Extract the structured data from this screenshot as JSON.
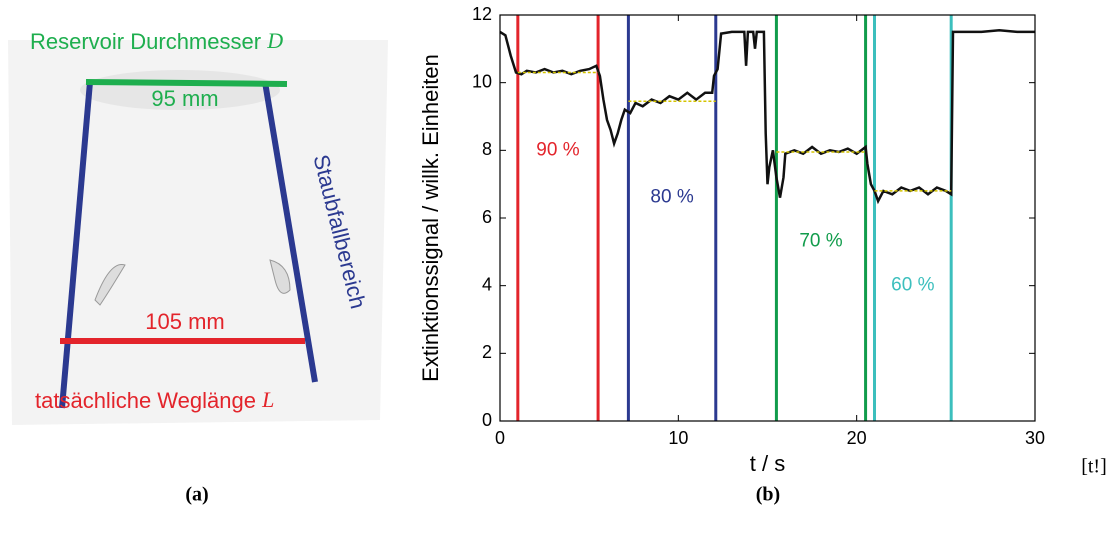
{
  "panel_a": {
    "top_label": "Reservoir Durchmesser",
    "top_symbol": "D",
    "top_width": "95 mm",
    "side_label": "Staubfallbereich",
    "bottom_width": "105 mm",
    "bottom_label": "tatsächliche Weglänge",
    "bottom_symbol": "L"
  },
  "chart_data": {
    "type": "line",
    "xlabel": "t / s",
    "ylabel": "Extinktionssignal / willk. Einheiten",
    "xlim": [
      0,
      30
    ],
    "ylim": [
      0,
      12
    ],
    "xticks": [
      0,
      10,
      20,
      30
    ],
    "yticks": [
      0,
      2,
      4,
      6,
      8,
      10,
      12
    ],
    "series": [
      {
        "color": "#111111",
        "x": [
          0,
          0.3,
          0.6,
          0.9,
          1.2,
          1.5,
          2,
          2.5,
          3,
          3.5,
          4,
          4.5,
          5,
          5.4,
          5.6,
          5.8,
          6,
          6.2,
          6.4,
          6.6,
          6.8,
          7,
          7.3,
          7.6,
          8,
          8.5,
          9,
          9.5,
          10,
          10.5,
          11,
          11.5,
          11.9,
          12,
          12.2,
          12.4,
          13,
          13.5,
          13.7,
          13.8,
          13.9,
          14.2,
          14.3,
          14.4,
          14.8,
          14.9,
          15,
          15.1,
          15.3,
          15.5,
          15.7,
          15.9,
          16,
          16.5,
          17,
          17.5,
          18,
          18.5,
          19,
          19.5,
          20,
          20.5,
          20.6,
          20.8,
          21,
          21.2,
          21.5,
          22,
          22.5,
          23,
          23.5,
          24,
          24.5,
          25,
          25.3,
          25.4,
          26,
          27,
          28,
          29,
          30
        ],
        "values": [
          11.5,
          11.4,
          10.8,
          10.3,
          10.25,
          10.35,
          10.3,
          10.4,
          10.3,
          10.35,
          10.25,
          10.35,
          10.4,
          10.5,
          10.2,
          9.5,
          8.9,
          8.6,
          8.2,
          8.5,
          8.9,
          9.2,
          9.1,
          9.4,
          9.3,
          9.5,
          9.4,
          9.6,
          9.5,
          9.7,
          9.5,
          9.7,
          9.7,
          10.2,
          10.4,
          11.45,
          11.5,
          11.5,
          11.5,
          10.5,
          11.5,
          11.5,
          11,
          11.5,
          11.5,
          8.5,
          7,
          7.5,
          8,
          7.2,
          6.6,
          7.2,
          7.9,
          8,
          7.9,
          8.1,
          7.9,
          8,
          7.95,
          8.05,
          7.9,
          8.1,
          7.6,
          7,
          6.8,
          6.5,
          6.8,
          6.7,
          6.9,
          6.8,
          6.9,
          6.7,
          6.9,
          6.8,
          6.7,
          11.5,
          11.5,
          11.5,
          11.55,
          11.5,
          11.5
        ]
      },
      {
        "color": "#d4c400",
        "x": [
          1,
          5.5
        ],
        "values": [
          10.3,
          10.3
        ]
      },
      {
        "color": "#d4c400",
        "x": [
          7.2,
          12.1
        ],
        "values": [
          9.45,
          9.45
        ]
      },
      {
        "color": "#d4c400",
        "x": [
          15.5,
          20.5
        ],
        "values": [
          7.95,
          7.95
        ]
      },
      {
        "color": "#d4c400",
        "x": [
          21,
          25.3
        ],
        "values": [
          6.8,
          6.8
        ]
      }
    ],
    "vlines": [
      {
        "x": 1,
        "color": "#e3242b"
      },
      {
        "x": 5.5,
        "color": "#e3242b"
      },
      {
        "x": 7.2,
        "color": "#2b3990"
      },
      {
        "x": 12.1,
        "color": "#2b3990"
      },
      {
        "x": 15.5,
        "color": "#119c4b"
      },
      {
        "x": 20.5,
        "color": "#119c4b"
      },
      {
        "x": 21,
        "color": "#3cbfbd"
      },
      {
        "x": 25.3,
        "color": "#3cbfbd"
      }
    ],
    "annotations": [
      "90 %",
      "80 %",
      "70 %",
      "60 %"
    ]
  },
  "captions": {
    "a": "(a)",
    "b": "(b)",
    "extra": "[t!]"
  }
}
